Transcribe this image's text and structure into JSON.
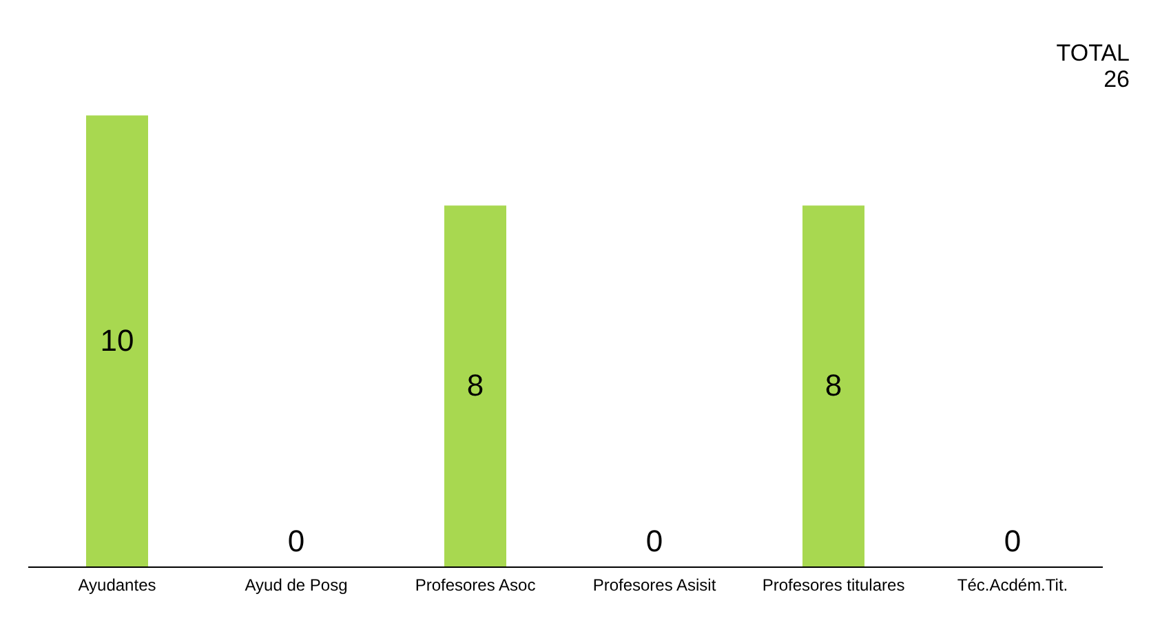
{
  "chart_data": {
    "type": "bar",
    "categories": [
      "Ayudantes",
      "Ayud de Posg",
      "Profesores Asoc",
      "Profesores Asisit",
      "Profesores titulares",
      "Téc.Acdém.Tit."
    ],
    "values": [
      10,
      0,
      8,
      0,
      8,
      0
    ],
    "color": "#a8d850",
    "data_labels": true,
    "grid": false,
    "annotations": [
      "TOTAL 26"
    ]
  }
}
